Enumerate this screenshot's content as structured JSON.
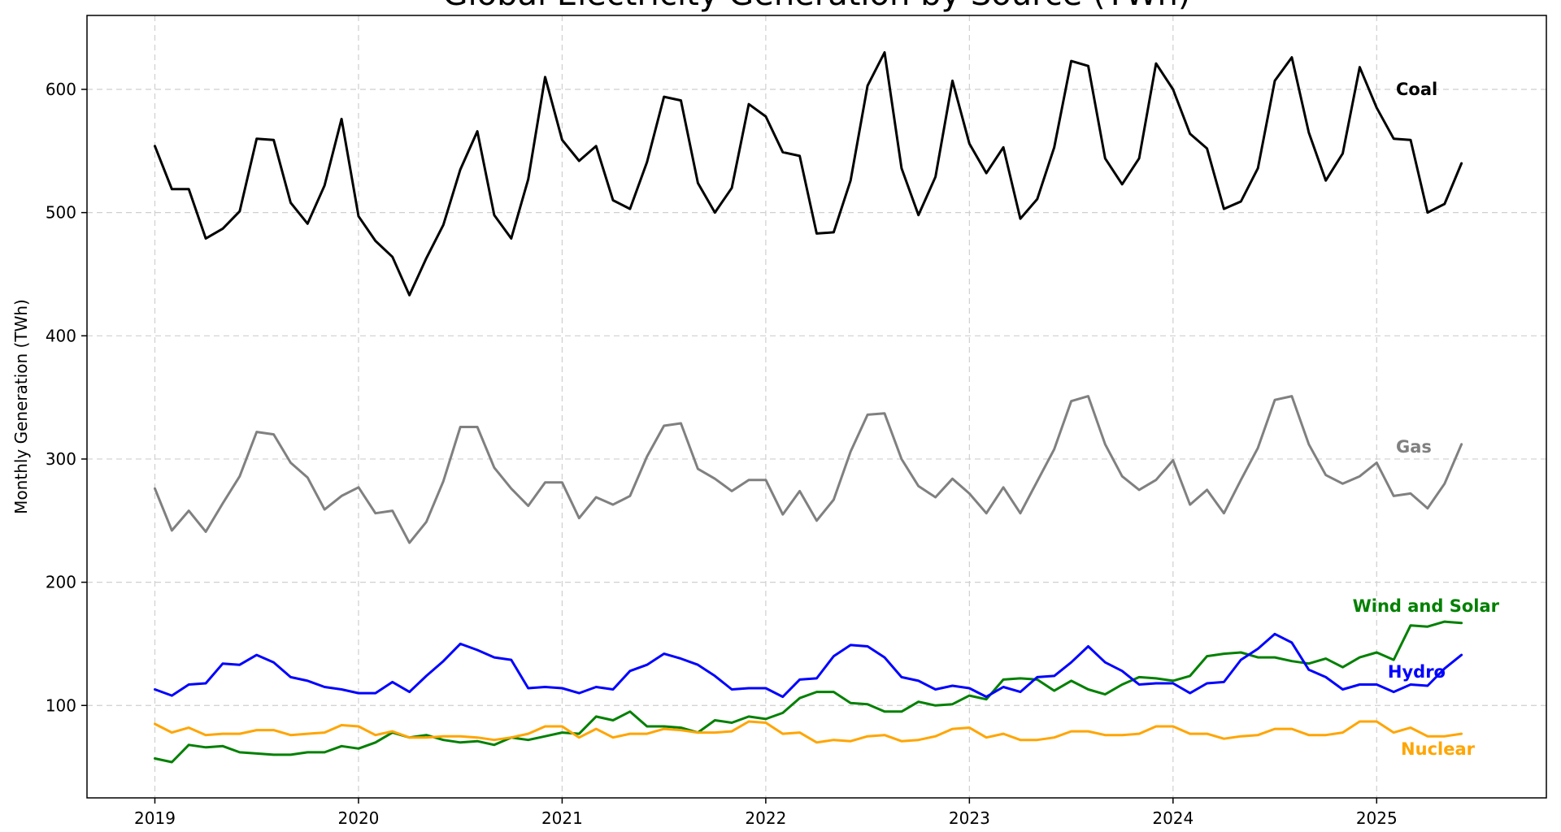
{
  "chart_data": {
    "type": "line",
    "title": "Global Electricity Generation by Source (TWh)",
    "ylabel": "Monthly Generation (TWh)",
    "xlabel": "",
    "x_start": "2019-01",
    "x_end": "2025-06",
    "xticks": [
      "2019",
      "2020",
      "2021",
      "2022",
      "2023",
      "2024",
      "2025"
    ],
    "yticks": [
      100,
      200,
      300,
      400,
      500,
      600
    ],
    "xlim": [
      "2018-09",
      "2025-11"
    ],
    "ylim": [
      25,
      660
    ],
    "grid": true,
    "legend": "inline labels at right end of each series",
    "series": [
      {
        "name": "Coal",
        "color": "#000000",
        "values": [
          554,
          519,
          519,
          479,
          487,
          501,
          560,
          559,
          508,
          491,
          522,
          576,
          497,
          477,
          464,
          433,
          463,
          490,
          535,
          566,
          498,
          479,
          527,
          610,
          559,
          542,
          554,
          510,
          503,
          541,
          594,
          591,
          524,
          500,
          520,
          588,
          578,
          549,
          546,
          483,
          484,
          526,
          603,
          630,
          536,
          498,
          529,
          607,
          556,
          532,
          553,
          495,
          511,
          553,
          623,
          619,
          544,
          523,
          544,
          621,
          600,
          564,
          552,
          503,
          509,
          536,
          607,
          626,
          565,
          526,
          548,
          618,
          585,
          560,
          559,
          500,
          507,
          540
        ]
      },
      {
        "name": "Gas",
        "color": "#808080",
        "values": [
          276,
          242,
          258,
          241,
          264,
          286,
          322,
          320,
          297,
          285,
          259,
          270,
          277,
          256,
          258,
          232,
          249,
          282,
          326,
          326,
          293,
          276,
          262,
          281,
          281,
          252,
          269,
          263,
          270,
          302,
          327,
          329,
          292,
          284,
          274,
          283,
          283,
          255,
          274,
          250,
          267,
          306,
          336,
          337,
          300,
          278,
          269,
          284,
          272,
          256,
          277,
          256,
          282,
          308,
          347,
          351,
          312,
          286,
          275,
          283,
          299,
          263,
          275,
          256,
          283,
          309,
          348,
          351,
          312,
          287,
          280,
          286,
          297,
          270,
          272,
          260,
          280,
          312
        ]
      },
      {
        "name": "Wind and Solar",
        "color": "#008000",
        "values": [
          57,
          54,
          68,
          66,
          67,
          62,
          61,
          60,
          60,
          62,
          62,
          67,
          65,
          70,
          78,
          74,
          76,
          72,
          70,
          71,
          68,
          74,
          72,
          75,
          78,
          77,
          91,
          88,
          95,
          83,
          83,
          82,
          78,
          88,
          86,
          91,
          89,
          94,
          106,
          111,
          111,
          102,
          101,
          95,
          95,
          103,
          100,
          101,
          108,
          105,
          121,
          122,
          121,
          112,
          120,
          113,
          109,
          117,
          123,
          122,
          120,
          124,
          140,
          142,
          143,
          139,
          139,
          136,
          134,
          138,
          131,
          139,
          143,
          137,
          165,
          164,
          168,
          167
        ]
      },
      {
        "name": "Hydro",
        "color": "#0000ff",
        "values": [
          113,
          108,
          117,
          118,
          134,
          133,
          141,
          135,
          123,
          120,
          115,
          113,
          110,
          110,
          119,
          111,
          124,
          136,
          150,
          145,
          139,
          137,
          114,
          115,
          114,
          110,
          115,
          113,
          128,
          133,
          142,
          138,
          133,
          124,
          113,
          114,
          114,
          107,
          121,
          122,
          140,
          149,
          148,
          139,
          123,
          120,
          113,
          116,
          114,
          107,
          115,
          111,
          123,
          124,
          135,
          148,
          135,
          128,
          117,
          118,
          118,
          110,
          118,
          119,
          137,
          146,
          158,
          151,
          129,
          123,
          113,
          117,
          117,
          111,
          117,
          116,
          130,
          141
        ]
      },
      {
        "name": "Nuclear",
        "color": "#ffa500",
        "values": [
          85,
          78,
          82,
          76,
          77,
          77,
          80,
          80,
          76,
          77,
          78,
          84,
          83,
          76,
          79,
          74,
          74,
          75,
          75,
          74,
          72,
          74,
          77,
          83,
          83,
          74,
          81,
          74,
          77,
          77,
          81,
          80,
          78,
          78,
          79,
          87,
          86,
          77,
          78,
          70,
          72,
          71,
          75,
          76,
          71,
          72,
          75,
          81,
          82,
          74,
          77,
          72,
          72,
          74,
          79,
          79,
          76,
          76,
          77,
          83,
          83,
          77,
          77,
          73,
          75,
          76,
          81,
          81,
          76,
          76,
          78,
          87,
          87,
          78,
          82,
          75,
          75,
          77
        ]
      }
    ]
  }
}
